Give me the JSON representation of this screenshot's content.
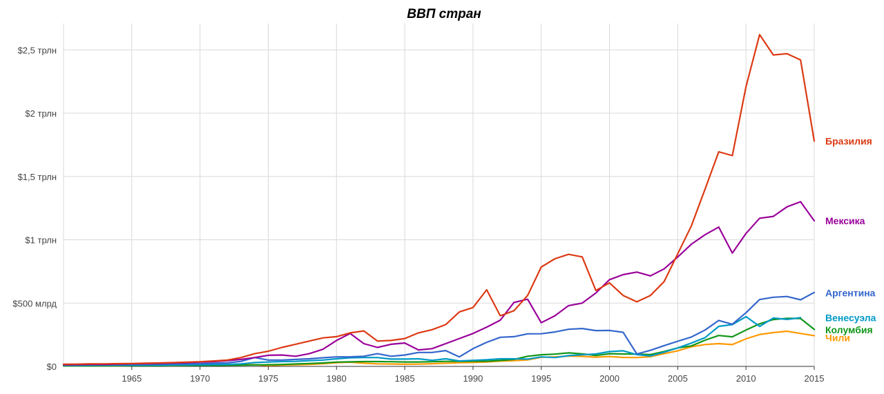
{
  "chart_data": {
    "type": "line",
    "title": "ВВП стран",
    "xlabel": "",
    "ylabel": "",
    "xlim": [
      1960,
      2015
    ],
    "ylim": [
      0,
      2.7
    ],
    "grid": true,
    "legend": "right, labels at line ends",
    "y_ticks": [
      {
        "value": 0,
        "label": "$0"
      },
      {
        "value": 0.5,
        "label": "$500 млрд"
      },
      {
        "value": 1,
        "label": "$1 трлн"
      },
      {
        "value": 1.5,
        "label": "$1,5 трлн"
      },
      {
        "value": 2,
        "label": "$2 трлн"
      },
      {
        "value": 2.5,
        "label": "$2,5 трлн"
      }
    ],
    "x_ticks": [
      1965,
      1970,
      1975,
      1980,
      1985,
      1990,
      1995,
      2000,
      2005,
      2010,
      2015
    ],
    "x": [
      1960,
      1961,
      1962,
      1963,
      1964,
      1965,
      1966,
      1967,
      1968,
      1969,
      1970,
      1971,
      1972,
      1973,
      1974,
      1975,
      1976,
      1977,
      1978,
      1979,
      1980,
      1981,
      1982,
      1983,
      1984,
      1985,
      1986,
      1987,
      1988,
      1989,
      1990,
      1991,
      1992,
      1993,
      1994,
      1995,
      1996,
      1997,
      1998,
      1999,
      2000,
      2001,
      2002,
      2003,
      2004,
      2005,
      2006,
      2007,
      2008,
      2009,
      2010,
      2011,
      2012,
      2013,
      2014,
      2015
    ],
    "series": [
      {
        "name": "Бразилия",
        "color": "#dc3912",
        "label_value": 1.78,
        "values": [
          0.017,
          0.018,
          0.02,
          0.02,
          0.022,
          0.023,
          0.025,
          0.027,
          0.03,
          0.033,
          0.037,
          0.043,
          0.05,
          0.07,
          0.1,
          0.12,
          0.15,
          0.175,
          0.2,
          0.225,
          0.235,
          0.265,
          0.28,
          0.2,
          0.205,
          0.22,
          0.265,
          0.29,
          0.33,
          0.43,
          0.465,
          0.605,
          0.4,
          0.44,
          0.56,
          0.785,
          0.85,
          0.885,
          0.865,
          0.6,
          0.66,
          0.56,
          0.51,
          0.56,
          0.67,
          0.89,
          1.11,
          1.4,
          1.695,
          1.665,
          2.21,
          2.62,
          2.46,
          2.47,
          2.42,
          1.78
        ]
      },
      {
        "name": "Мексика",
        "color": "#990099",
        "label_value": 1.15,
        "values": [
          0.013,
          0.014,
          0.015,
          0.016,
          0.019,
          0.021,
          0.023,
          0.025,
          0.028,
          0.03,
          0.035,
          0.038,
          0.045,
          0.055,
          0.07,
          0.088,
          0.09,
          0.08,
          0.1,
          0.135,
          0.205,
          0.26,
          0.18,
          0.15,
          0.175,
          0.185,
          0.13,
          0.14,
          0.18,
          0.22,
          0.26,
          0.31,
          0.365,
          0.505,
          0.53,
          0.345,
          0.4,
          0.48,
          0.5,
          0.58,
          0.685,
          0.725,
          0.745,
          0.715,
          0.77,
          0.865,
          0.965,
          1.04,
          1.1,
          0.895,
          1.05,
          1.17,
          1.185,
          1.26,
          1.3,
          1.15
        ]
      },
      {
        "name": "Аргентина",
        "color": "#3366cc",
        "label_value": 0.58,
        "values": [
          0.012,
          0.013,
          0.014,
          0.013,
          0.014,
          0.015,
          0.016,
          0.017,
          0.018,
          0.02,
          0.022,
          0.025,
          0.028,
          0.04,
          0.07,
          0.05,
          0.05,
          0.055,
          0.06,
          0.068,
          0.075,
          0.075,
          0.08,
          0.1,
          0.08,
          0.09,
          0.11,
          0.11,
          0.125,
          0.075,
          0.14,
          0.19,
          0.23,
          0.235,
          0.257,
          0.258,
          0.272,
          0.293,
          0.299,
          0.283,
          0.284,
          0.269,
          0.098,
          0.127,
          0.164,
          0.199,
          0.232,
          0.287,
          0.363,
          0.333,
          0.424,
          0.528,
          0.546,
          0.552,
          0.526,
          0.584
        ]
      },
      {
        "name": "Венесуэла",
        "color": "#0099c6",
        "label_value": 0.385,
        "values": [
          0.008,
          0.008,
          0.009,
          0.009,
          0.009,
          0.01,
          0.01,
          0.011,
          0.011,
          0.012,
          0.013,
          0.014,
          0.016,
          0.02,
          0.03,
          0.035,
          0.038,
          0.04,
          0.045,
          0.05,
          0.06,
          0.068,
          0.07,
          0.07,
          0.058,
          0.058,
          0.06,
          0.048,
          0.06,
          0.043,
          0.048,
          0.053,
          0.06,
          0.06,
          0.058,
          0.075,
          0.07,
          0.085,
          0.092,
          0.098,
          0.117,
          0.123,
          0.093,
          0.083,
          0.112,
          0.146,
          0.184,
          0.227,
          0.316,
          0.33,
          0.393,
          0.316,
          0.382,
          0.371,
          0.385,
          null
        ]
      },
      {
        "name": "Колумбия",
        "color": "#109618",
        "label_value": 0.29,
        "values": [
          0.004,
          0.004,
          0.004,
          0.005,
          0.006,
          0.006,
          0.006,
          0.006,
          0.007,
          0.007,
          0.007,
          0.008,
          0.009,
          0.01,
          0.012,
          0.013,
          0.015,
          0.019,
          0.023,
          0.027,
          0.034,
          0.036,
          0.038,
          0.038,
          0.037,
          0.035,
          0.035,
          0.037,
          0.04,
          0.04,
          0.041,
          0.041,
          0.047,
          0.055,
          0.08,
          0.092,
          0.097,
          0.107,
          0.099,
          0.086,
          0.1,
          0.098,
          0.097,
          0.094,
          0.117,
          0.146,
          0.162,
          0.207,
          0.244,
          0.234,
          0.287,
          0.336,
          0.37,
          0.38,
          0.378,
          0.292
        ]
      },
      {
        "name": "Чили",
        "color": "#ff9900",
        "label_value": 0.225,
        "values": [
          0.004,
          0.004,
          0.005,
          0.005,
          0.005,
          0.006,
          0.006,
          0.006,
          0.006,
          0.007,
          0.009,
          0.01,
          0.01,
          0.014,
          0.013,
          0.007,
          0.01,
          0.013,
          0.015,
          0.021,
          0.029,
          0.033,
          0.025,
          0.02,
          0.019,
          0.017,
          0.018,
          0.021,
          0.025,
          0.029,
          0.031,
          0.035,
          0.042,
          0.045,
          0.051,
          0.072,
          0.075,
          0.082,
          0.079,
          0.073,
          0.078,
          0.071,
          0.07,
          0.077,
          0.1,
          0.123,
          0.155,
          0.173,
          0.18,
          0.172,
          0.218,
          0.252,
          0.267,
          0.278,
          0.26,
          0.243
        ]
      }
    ]
  }
}
